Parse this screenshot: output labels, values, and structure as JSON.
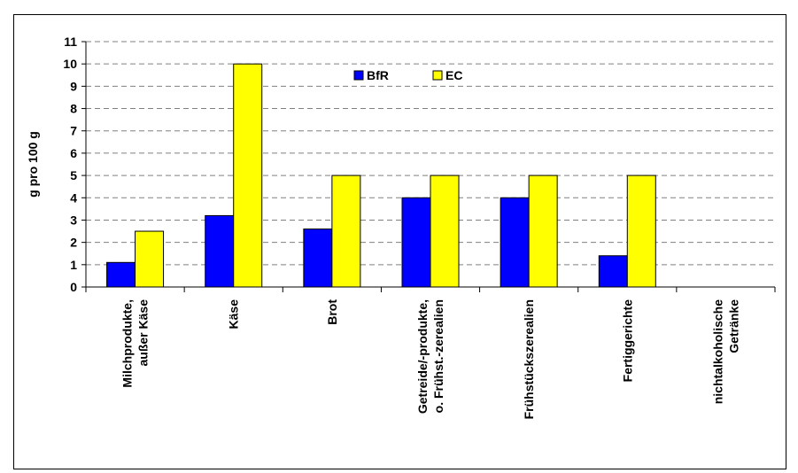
{
  "chart_data": {
    "type": "bar",
    "title": "",
    "xlabel": "",
    "ylabel": "g pro 100 g",
    "ylim": [
      0,
      11
    ],
    "yticks": [
      0,
      1,
      2,
      3,
      4,
      5,
      6,
      7,
      8,
      9,
      10,
      11
    ],
    "grid": "horizontal dashed",
    "legend_position": "top-center",
    "categories": [
      [
        "Milchprodukte,",
        "außer Käse"
      ],
      [
        "Käse"
      ],
      [
        "Brot"
      ],
      [
        "Getreide/-produkte,",
        "o. Frühst.-zerealien"
      ],
      [
        "Frühstückszerealien"
      ],
      [
        "Fertiggerichte"
      ],
      [
        "nichtalkoholische",
        "Getränke"
      ]
    ],
    "series": [
      {
        "name": "BfR",
        "color": "#0000ff",
        "values": [
          1.1,
          3.2,
          2.6,
          4.0,
          4.0,
          1.4,
          null
        ]
      },
      {
        "name": "EC",
        "color": "#ffff00",
        "values": [
          2.5,
          10.0,
          5.0,
          5.0,
          5.0,
          5.0,
          null
        ]
      }
    ]
  }
}
